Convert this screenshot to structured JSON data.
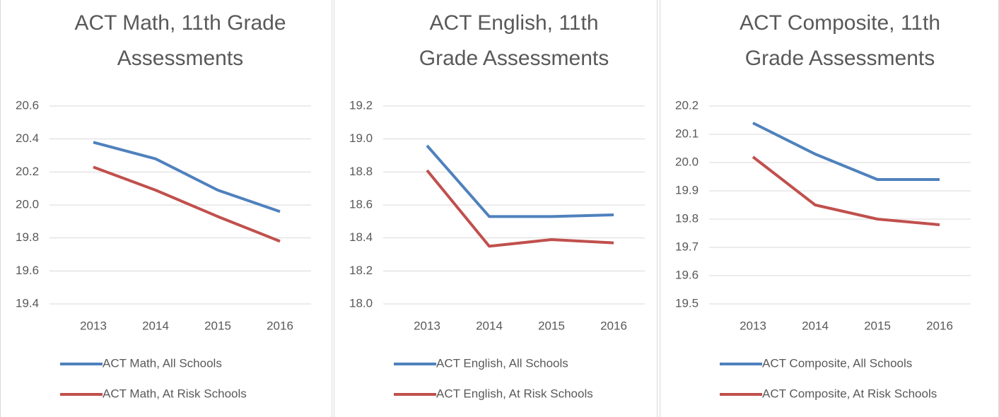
{
  "chart_data": [
    {
      "type": "line",
      "title": "ACT Math, 11th Grade Assessments",
      "categories": [
        "2013",
        "2014",
        "2015",
        "2016"
      ],
      "series": [
        {
          "name": "ACT Math, All Schools",
          "color": "#4f81bd",
          "values": [
            20.38,
            20.28,
            20.09,
            19.96
          ]
        },
        {
          "name": "ACT Math, At Risk Schools",
          "color": "#c0504d",
          "values": [
            20.23,
            20.09,
            19.93,
            19.78
          ]
        }
      ],
      "ylim": [
        19.4,
        20.6
      ],
      "yticks": [
        19.4,
        19.6,
        19.8,
        {
          "value": 20,
          "label": "20.0"
        },
        20.2,
        20.4,
        20.6
      ],
      "grid": true
    },
    {
      "type": "line",
      "title": "ACT English, 11th Grade Assessments",
      "categories": [
        "2013",
        "2014",
        "2015",
        "2016"
      ],
      "series": [
        {
          "name": "ACT English, All Schools",
          "color": "#4f81bd",
          "values": [
            18.96,
            18.53,
            18.53,
            18.54
          ]
        },
        {
          "name": "ACT English, At Risk Schools",
          "color": "#c0504d",
          "values": [
            18.81,
            18.35,
            18.39,
            18.37
          ]
        }
      ],
      "ylim": [
        18,
        19.2
      ],
      "yticks": [
        {
          "value": 18,
          "label": "18.0"
        },
        18.2,
        18.4,
        18.6,
        18.8,
        {
          "value": 19,
          "label": "19.0"
        },
        19.2
      ],
      "grid": true
    },
    {
      "type": "line",
      "title": "ACT Composite, 11th Grade Assessments",
      "categories": [
        "2013",
        "2014",
        "2015",
        "2016"
      ],
      "series": [
        {
          "name": "ACT Composite, All Schools",
          "color": "#4f81bd",
          "values": [
            20.14,
            20.03,
            19.94,
            19.94
          ]
        },
        {
          "name": "ACT Composite, At Risk Schools",
          "color": "#c0504d",
          "values": [
            20.02,
            19.85,
            19.8,
            19.78
          ]
        }
      ],
      "ylim": [
        19.5,
        20.2
      ],
      "yticks": [
        19.5,
        19.6,
        19.7,
        19.8,
        19.9,
        {
          "value": 20,
          "label": "20.0"
        },
        20.1,
        20.2
      ],
      "grid": true
    }
  ]
}
